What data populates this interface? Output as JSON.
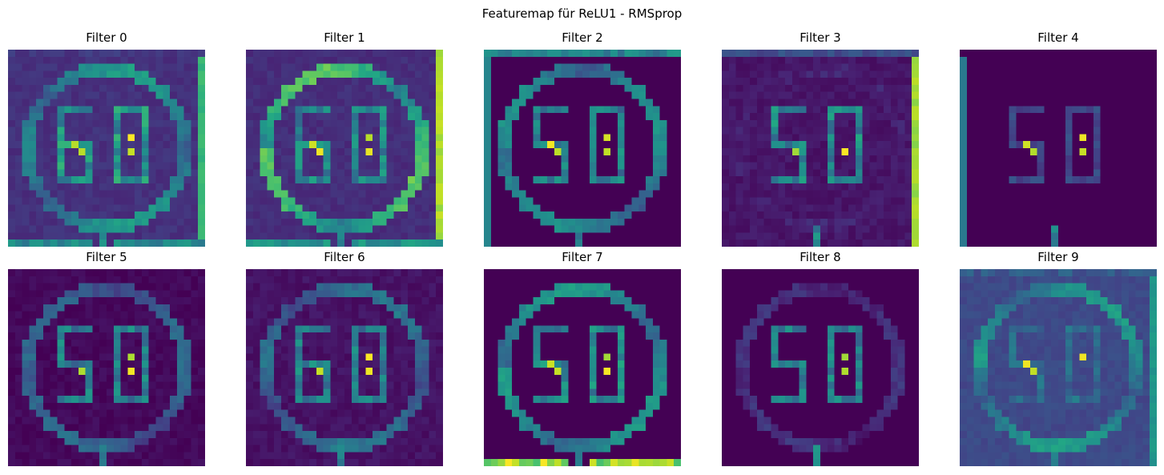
{
  "figure": {
    "title": "Featuremap für ReLU1 - RMSprop"
  },
  "chart_data": [
    {
      "type": "heatmap",
      "title": "Filter 0",
      "colormap": "viridis",
      "digits": "60",
      "ring": 0.55,
      "digit": 0.6,
      "hot": 1.0,
      "bg": 0.14,
      "edges": {
        "right": 0.7,
        "top": 0.2,
        "bottom": 0.55
      }
    },
    {
      "type": "heatmap",
      "title": "Filter 1",
      "colormap": "viridis",
      "digits": "60",
      "ring": 0.75,
      "digit": 0.55,
      "hot": 1.0,
      "bg": 0.13,
      "edges": {
        "right": 0.92,
        "bottom": 0.6
      }
    },
    {
      "type": "heatmap",
      "title": "Filter 2",
      "colormap": "viridis",
      "digits": "50",
      "ring": 0.5,
      "digit": 0.5,
      "hot": 1.0,
      "bg": 0.0,
      "edges": {
        "top": 0.55,
        "left": 0.45
      }
    },
    {
      "type": "heatmap",
      "title": "Filter 3",
      "colormap": "viridis",
      "digits": "50",
      "ring": 0.1,
      "digit": 0.55,
      "hot": 1.0,
      "bg": 0.06,
      "edges": {
        "right": 0.9,
        "top": 0.3
      }
    },
    {
      "type": "heatmap",
      "title": "Filter 4",
      "colormap": "viridis",
      "digits": "50",
      "ring": 0.0,
      "digit": 0.25,
      "hot": 1.0,
      "bg": 0.0,
      "edges": {
        "left": 0.4
      }
    },
    {
      "type": "heatmap",
      "title": "Filter 5",
      "colormap": "viridis",
      "digits": "50",
      "ring": 0.35,
      "digit": 0.5,
      "hot": 1.0,
      "bg": 0.02,
      "edges": {}
    },
    {
      "type": "heatmap",
      "title": "Filter 6",
      "colormap": "viridis",
      "digits": "60",
      "ring": 0.4,
      "digit": 0.5,
      "hot": 1.0,
      "bg": 0.05,
      "edges": {}
    },
    {
      "type": "heatmap",
      "title": "Filter 7",
      "colormap": "viridis",
      "digits": "50",
      "ring": 0.55,
      "digit": 0.55,
      "hot": 1.0,
      "bg": 0.0,
      "edges": {
        "bottom": 1.0
      }
    },
    {
      "type": "heatmap",
      "title": "Filter 8",
      "colormap": "viridis",
      "digits": "50",
      "ring": 0.15,
      "digit": 0.5,
      "hot": 1.0,
      "bg": 0.0,
      "edges": {}
    },
    {
      "type": "heatmap",
      "title": "Filter 9",
      "colormap": "viridis",
      "digits": "50",
      "ring": 0.55,
      "digit": 0.4,
      "hot": 1.0,
      "bg": 0.22,
      "edges": {
        "right": 0.55,
        "top": 0.35
      }
    }
  ]
}
